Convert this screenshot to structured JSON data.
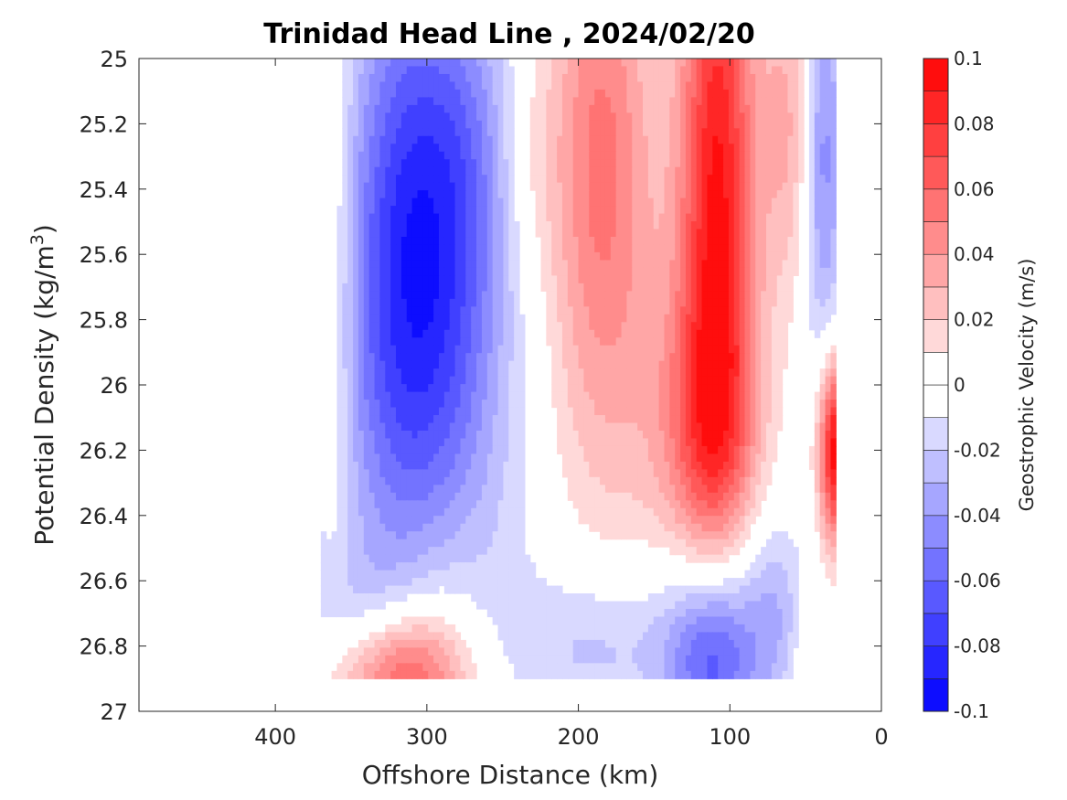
{
  "chart_data": {
    "type": "heatmap",
    "subtype": "filled-contour",
    "title": "Trinidad Head Line , 2024/02/20",
    "xlabel": "Offshore Distance (km)",
    "ylabel": {
      "base": "Potential Density (kg/m",
      "sup": "3",
      "tail": ")"
    },
    "x_axis": {
      "reversed": true,
      "range": [
        490,
        0
      ],
      "ticks": [
        "400",
        "300",
        "200",
        "100",
        "0"
      ],
      "tick_values": [
        400,
        300,
        200,
        100,
        0
      ]
    },
    "y_axis": {
      "reversed": true,
      "range": [
        25,
        27
      ],
      "ticks": [
        "25",
        "25.2",
        "25.4",
        "25.6",
        "25.8",
        "26",
        "26.2",
        "26.4",
        "26.6",
        "26.8",
        "27"
      ],
      "tick_values": [
        25,
        25.2,
        25.4,
        25.6,
        25.8,
        26,
        26.2,
        26.4,
        26.6,
        26.8,
        27
      ]
    },
    "colorbar": {
      "label": "Geostrophic Velocity (m/s)",
      "range": [
        -0.1,
        0.1
      ],
      "ticks": [
        "0.1",
        "0.08",
        "0.06",
        "0.04",
        "0.02",
        "0",
        "-0.02",
        "-0.04",
        "-0.06",
        "-0.08",
        "-0.1"
      ],
      "tick_values": [
        0.1,
        0.08,
        0.06,
        0.04,
        0.02,
        0,
        -0.02,
        -0.04,
        -0.06,
        -0.08,
        -0.1
      ],
      "levels": [
        -0.1,
        -0.09,
        -0.08,
        -0.07,
        -0.06,
        -0.05,
        -0.04,
        -0.03,
        -0.02,
        -0.01,
        0,
        0.01,
        0.02,
        0.03,
        0.04,
        0.05,
        0.06,
        0.07,
        0.08,
        0.09,
        0.1
      ]
    },
    "grid": false,
    "data_extent": {
      "x": [
        30,
        370
      ],
      "y": [
        25,
        26.9
      ]
    },
    "features": [
      {
        "kind": "positive",
        "x": 360,
        "y": 25.7,
        "dx": 9,
        "dy": 0.65,
        "peak": 0.02
      },
      {
        "kind": "negative",
        "x": 310,
        "y": 25.5,
        "dx": 30,
        "dy": 0.6,
        "peak": -0.07
      },
      {
        "kind": "negative",
        "x": 290,
        "y": 26.1,
        "dx": 55,
        "dy": 0.55,
        "peak": -0.035
      },
      {
        "kind": "negative",
        "x": 270,
        "y": 25.3,
        "dx": 22,
        "dy": 0.4,
        "peak": -0.025
      },
      {
        "kind": "positive",
        "x": 185,
        "y": 25.25,
        "dx": 24,
        "dy": 0.55,
        "peak": 0.05
      },
      {
        "kind": "positive",
        "x": 190,
        "y": 26.05,
        "dx": 50,
        "dy": 0.5,
        "peak": 0.02
      },
      {
        "kind": "positive",
        "x": 233,
        "y": 25.3,
        "dx": 14,
        "dy": 0.25,
        "peak": 0.012
      },
      {
        "kind": "positive",
        "x": 108,
        "y": 25.4,
        "dx": 18,
        "dy": 0.75,
        "peak": 0.09
      },
      {
        "kind": "positive",
        "x": 115,
        "y": 26.15,
        "dx": 24,
        "dy": 0.3,
        "peak": 0.04
      },
      {
        "kind": "positive",
        "x": 62,
        "y": 25.2,
        "dx": 12,
        "dy": 0.35,
        "peak": 0.03
      },
      {
        "kind": "negative",
        "x": 38,
        "y": 25.3,
        "dx": 9,
        "dy": 0.45,
        "peak": -0.045
      },
      {
        "kind": "positive",
        "x": 30,
        "y": 26.2,
        "dx": 8,
        "dy": 0.2,
        "peak": 0.1
      },
      {
        "kind": "positive",
        "x": 315,
        "y": 26.9,
        "dx": 30,
        "dy": 0.15,
        "peak": 0.07
      },
      {
        "kind": "positive",
        "x": 290,
        "y": 26.65,
        "dx": 20,
        "dy": 0.25,
        "peak": 0.012
      },
      {
        "kind": "negative",
        "x": 185,
        "y": 26.8,
        "dx": 40,
        "dy": 0.18,
        "peak": -0.025
      },
      {
        "kind": "negative",
        "x": 110,
        "y": 26.85,
        "dx": 22,
        "dy": 0.2,
        "peak": -0.07
      },
      {
        "kind": "negative",
        "x": 100,
        "y": 26.55,
        "dx": 28,
        "dy": 0.2,
        "peak": -0.015
      },
      {
        "kind": "negative",
        "x": 355,
        "y": 26.7,
        "dx": 25,
        "dy": 0.15,
        "peak": -0.015
      },
      {
        "kind": "negative",
        "x": 70,
        "y": 26.7,
        "dx": 12,
        "dy": 0.2,
        "peak": -0.02
      },
      {
        "kind": "positive",
        "x": 50,
        "y": 26.85,
        "dx": 5,
        "dy": 0.1,
        "peak": 0.012
      }
    ]
  }
}
